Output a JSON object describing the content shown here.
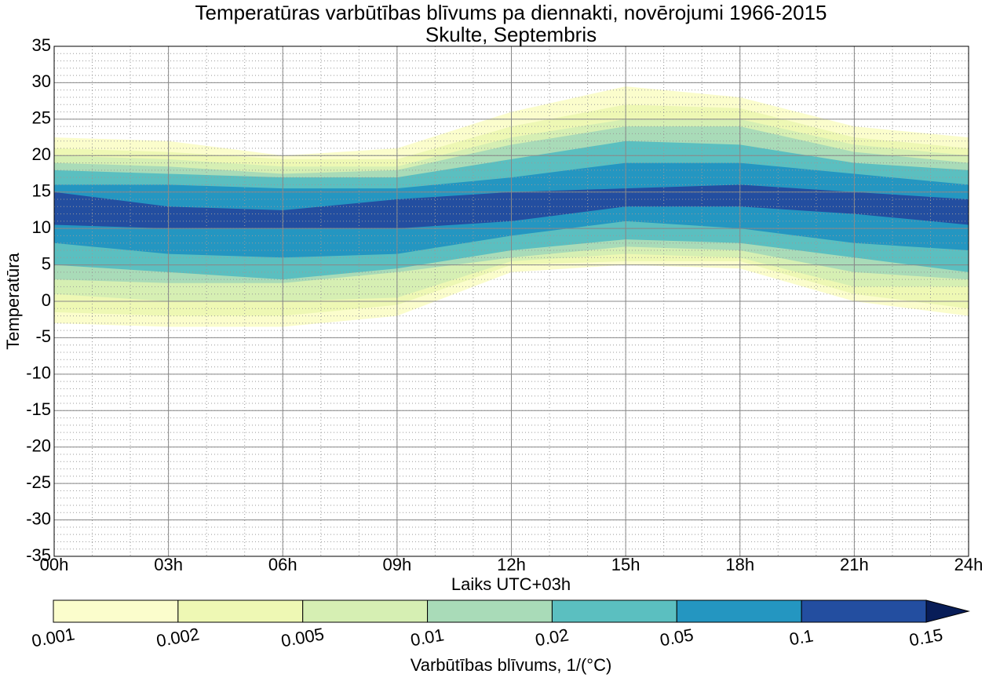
{
  "chart_data": {
    "type": "contour",
    "title": "Temperatūras varbūtības blīvums pa diennakti, novērojumi 1966-2015",
    "subtitle": "Skulte, Septembris",
    "xlabel": "Laiks UTC+03h",
    "ylabel": "Temperatūra",
    "colorbar_label": "Varbūtības blīvums, 1/(°C)",
    "x": [
      0,
      3,
      6,
      9,
      12,
      15,
      18,
      21,
      24
    ],
    "xlim": [
      0,
      24
    ],
    "xticks": [
      {
        "value": 0,
        "label": "00h"
      },
      {
        "value": 3,
        "label": "03h"
      },
      {
        "value": 6,
        "label": "06h"
      },
      {
        "value": 9,
        "label": "09h"
      },
      {
        "value": 12,
        "label": "12h"
      },
      {
        "value": 15,
        "label": "15h"
      },
      {
        "value": 18,
        "label": "18h"
      },
      {
        "value": 21,
        "label": "21h"
      },
      {
        "value": 24,
        "label": "24h"
      }
    ],
    "ylim": [
      -35,
      35
    ],
    "yticks": [
      -35,
      -30,
      -25,
      -20,
      -15,
      -10,
      -5,
      0,
      5,
      10,
      15,
      20,
      25,
      30,
      35
    ],
    "grid": true,
    "levels": [
      0.001,
      0.002,
      0.005,
      0.01,
      0.02,
      0.05,
      0.1,
      0.15
    ],
    "extend_color": "#081d58",
    "bands": [
      {
        "color": "#fbfdcc",
        "upper": [
          22.5,
          22,
          20,
          21,
          26,
          29.5,
          28,
          24,
          22.5
        ],
        "lower": [
          -3,
          -3.5,
          -3.5,
          -2,
          4,
          5,
          4.5,
          0,
          -2
        ]
      },
      {
        "color": "#eef8b4",
        "upper": [
          21,
          20.5,
          19.5,
          19.5,
          24,
          27,
          26.5,
          22.5,
          21
        ],
        "lower": [
          -1.5,
          -2,
          -2,
          -0.5,
          5,
          5.5,
          5.5,
          1,
          -1
        ]
      },
      {
        "color": "#d6efb3",
        "upper": [
          20,
          19.5,
          18.5,
          18.5,
          22.5,
          25,
          25,
          21.5,
          20
        ],
        "lower": [
          1,
          0,
          0,
          0.5,
          5.5,
          6.5,
          6,
          2,
          2
        ]
      },
      {
        "color": "#a9dbb8",
        "upper": [
          19,
          18.5,
          17.5,
          18,
          21.5,
          24,
          24,
          20.5,
          19
        ],
        "lower": [
          3,
          2.5,
          2.5,
          4,
          6,
          7.5,
          7,
          4,
          3
        ]
      },
      {
        "color": "#5bbfc0",
        "upper": [
          18,
          17.5,
          17,
          17,
          19.5,
          22,
          21.5,
          19,
          18
        ],
        "lower": [
          5,
          4,
          3,
          4.5,
          7,
          8.5,
          8,
          6,
          4
        ]
      },
      {
        "color": "#2496c1",
        "upper": [
          16,
          16,
          15.5,
          15.5,
          17,
          19,
          19,
          17.5,
          16
        ],
        "lower": [
          8,
          6.5,
          6,
          6.5,
          9,
          11,
          10,
          8,
          7
        ]
      },
      {
        "color": "#234ea0",
        "upper": [
          15,
          13,
          12.5,
          14,
          15,
          15.5,
          16,
          15,
          14
        ],
        "lower": [
          10.5,
          10,
          10,
          10,
          11,
          13,
          13,
          12,
          10.5
        ]
      }
    ]
  }
}
